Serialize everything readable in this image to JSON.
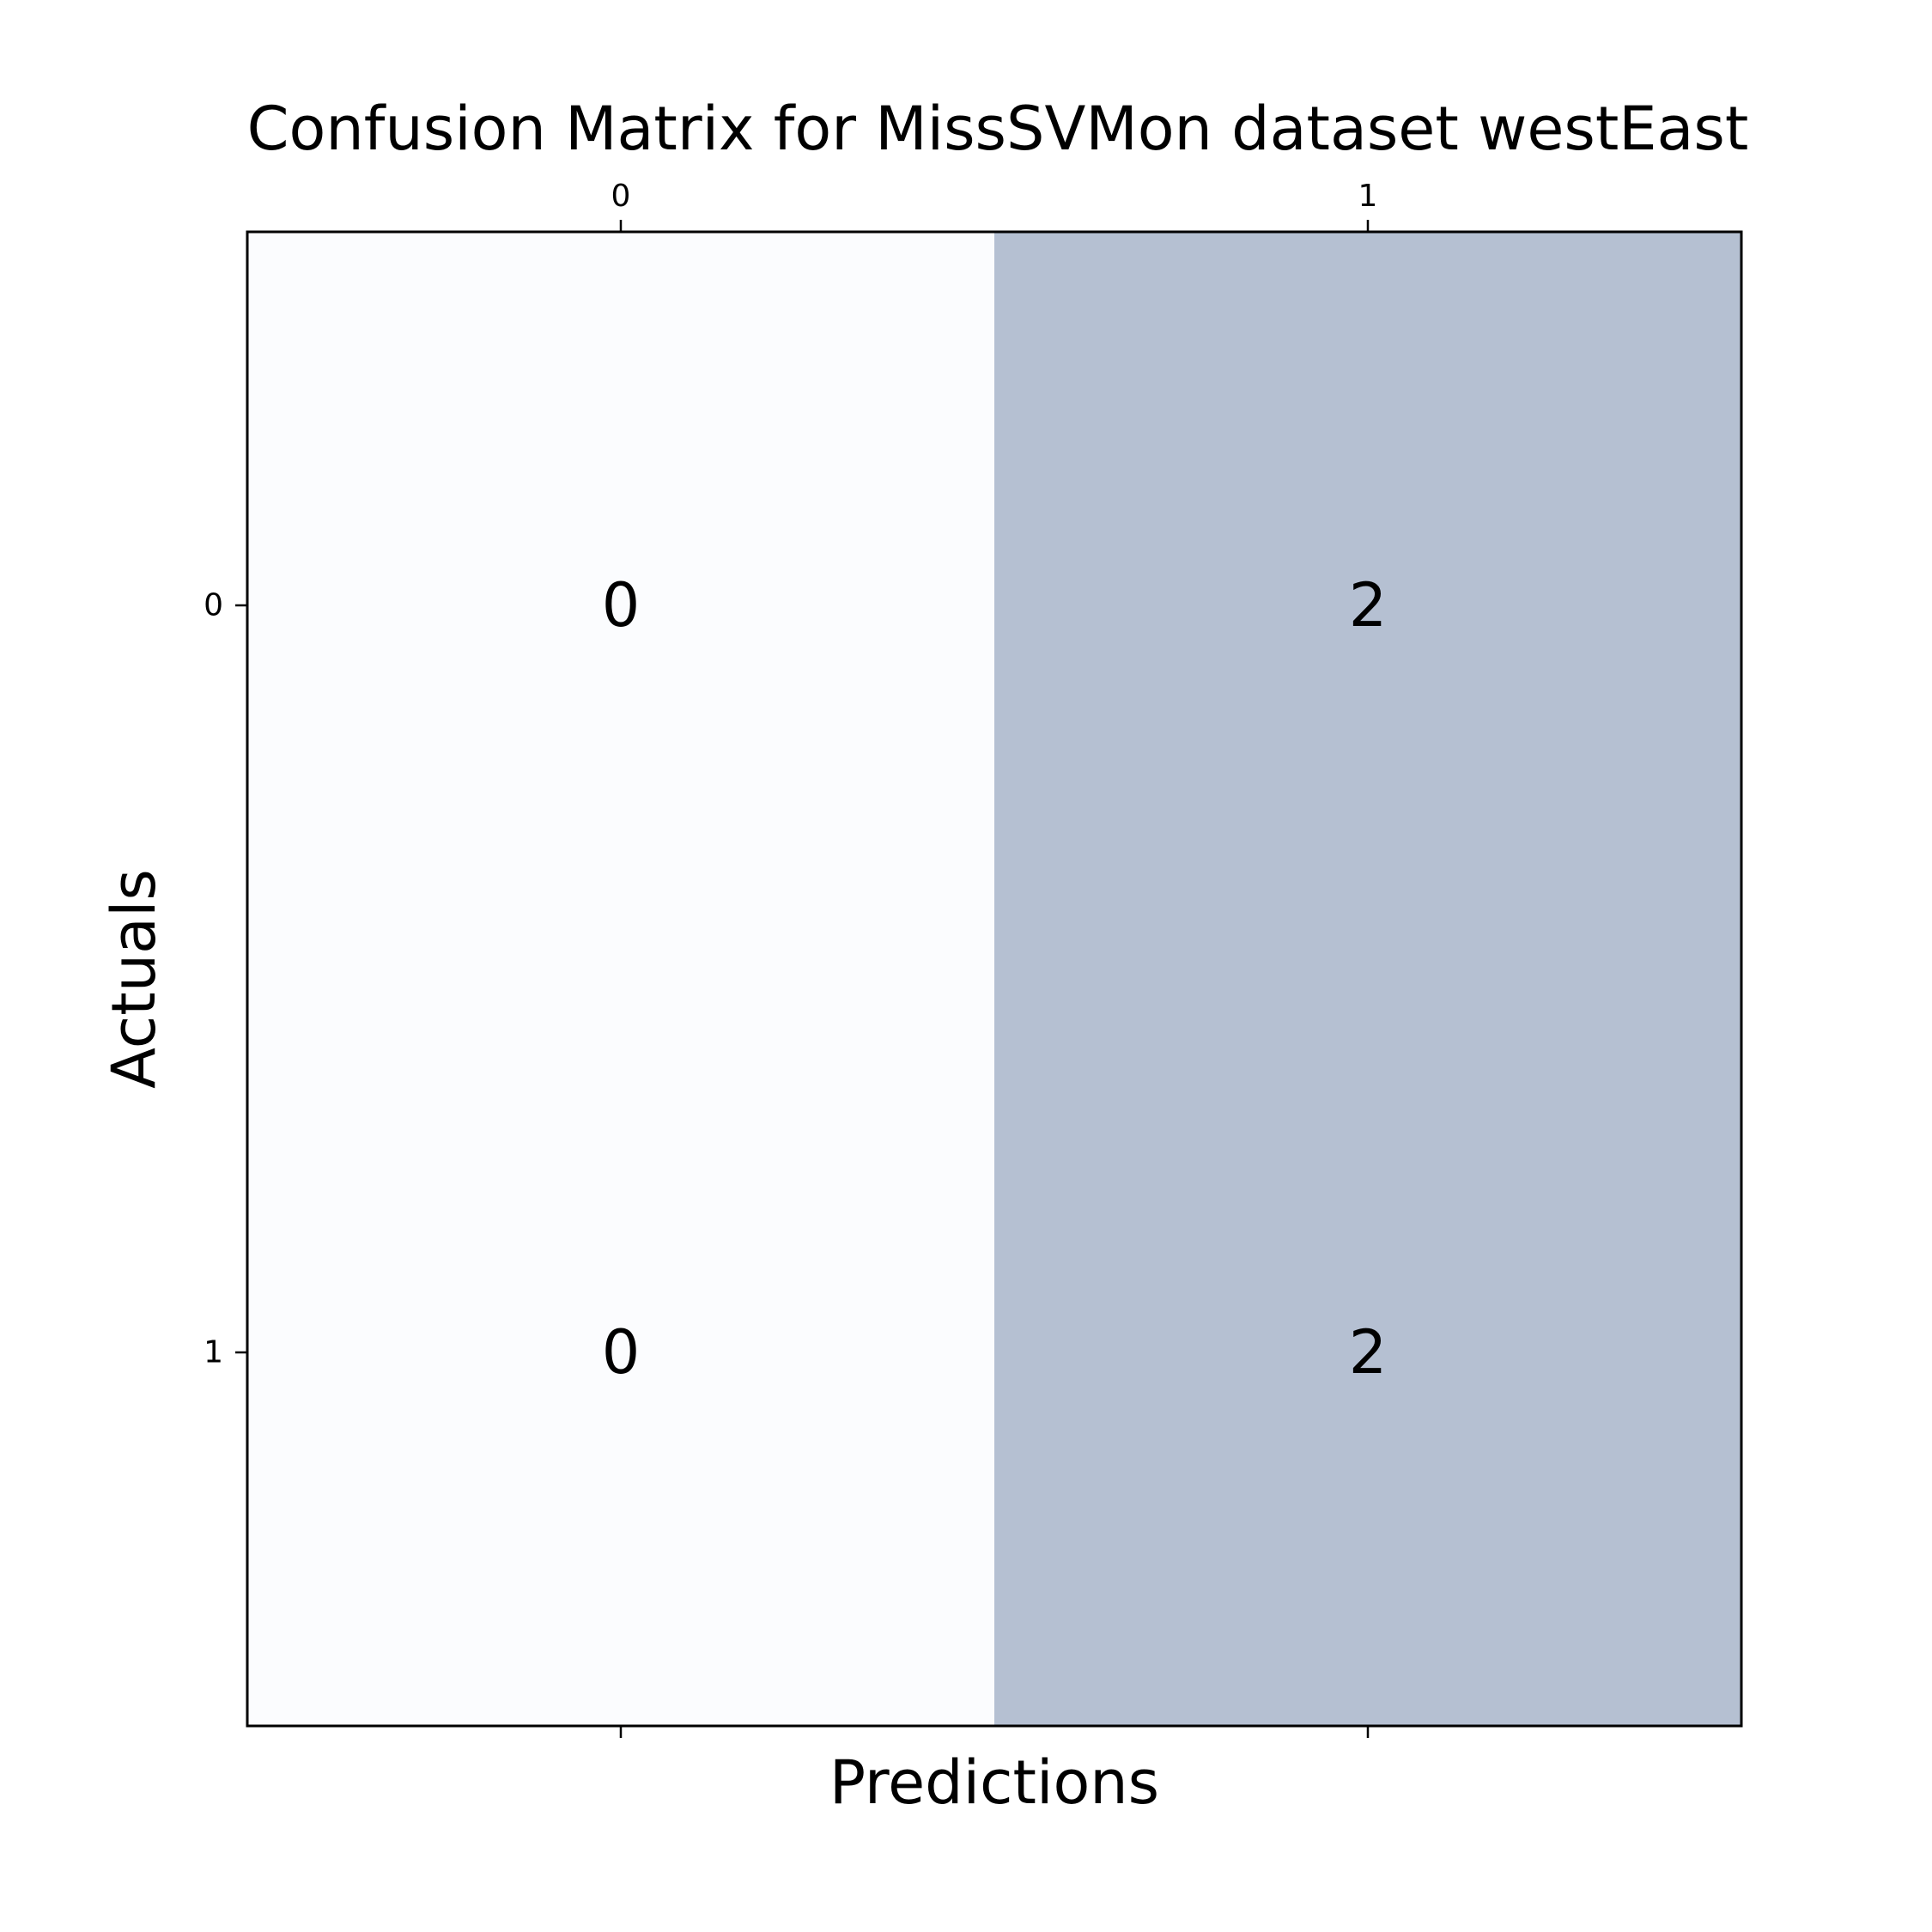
{
  "chart_data": {
    "type": "heatmap",
    "title": "Confusion Matrix for MissSVMon dataset westEast",
    "xlabel": "Predictions",
    "ylabel": "Actuals",
    "x_categories": [
      "0",
      "1"
    ],
    "y_categories": [
      "0",
      "1"
    ],
    "matrix": [
      [
        0,
        2
      ],
      [
        0,
        2
      ]
    ],
    "x_tick_position": "top",
    "colormap": "Blues",
    "alpha": 0.3,
    "grid": false,
    "colors": {
      "low": "#fbfcfe",
      "high": "#b5c0d2"
    }
  }
}
